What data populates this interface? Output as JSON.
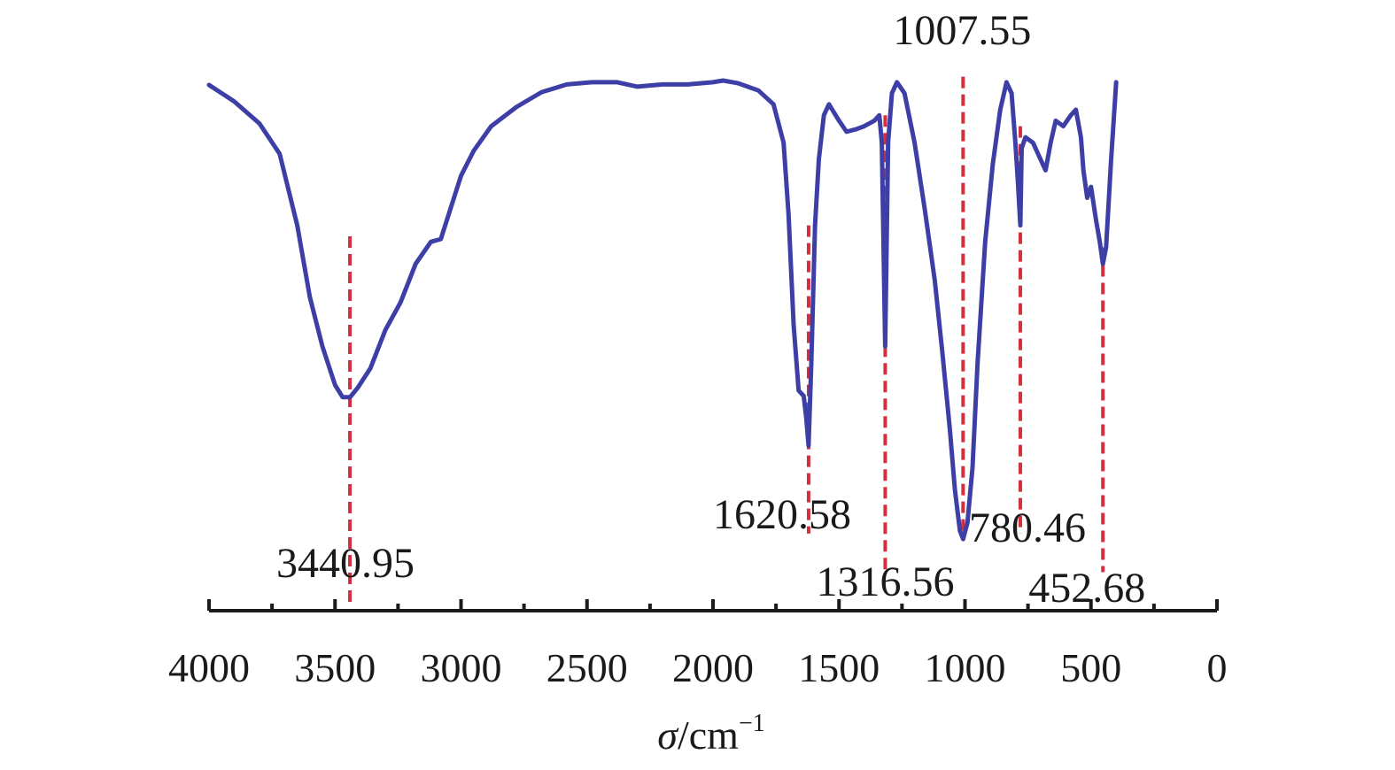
{
  "chart_data": {
    "type": "line",
    "title": "",
    "xlabel_symbol": "σ",
    "xlabel_unit": "/cm",
    "xlabel_exponent": "−1",
    "ylabel": "",
    "xlim": [
      4000,
      0
    ],
    "ylim": [
      0,
      100
    ],
    "x_reversed": true,
    "x_ticks": [
      4000,
      3500,
      3000,
      2500,
      2000,
      1500,
      1000,
      500,
      0
    ],
    "grid": false,
    "legend": "none",
    "colors": {
      "line": "#3d3fa6",
      "marker": "#d32f3f",
      "axis": "#1a1a1a"
    },
    "series": [
      {
        "points": [
          [
            4000,
            95.5
          ],
          [
            3900,
            92.5
          ],
          [
            3800,
            88.5
          ],
          [
            3720,
            83
          ],
          [
            3650,
            70
          ],
          [
            3600,
            57
          ],
          [
            3550,
            48
          ],
          [
            3500,
            41
          ],
          [
            3470,
            38.8
          ],
          [
            3440,
            38.8
          ],
          [
            3410,
            40.5
          ],
          [
            3360,
            44
          ],
          [
            3300,
            51
          ],
          [
            3240,
            56
          ],
          [
            3180,
            63
          ],
          [
            3120,
            67
          ],
          [
            3080,
            67.5
          ],
          [
            3000,
            79
          ],
          [
            2950,
            83.5
          ],
          [
            2880,
            88
          ],
          [
            2780,
            91.5
          ],
          [
            2680,
            94.2
          ],
          [
            2580,
            95.6
          ],
          [
            2480,
            96
          ],
          [
            2380,
            96
          ],
          [
            2300,
            95.2
          ],
          [
            2200,
            95.6
          ],
          [
            2100,
            95.6
          ],
          [
            2000,
            96
          ],
          [
            1960,
            96.3
          ],
          [
            1900,
            95.8
          ],
          [
            1820,
            94.5
          ],
          [
            1760,
            92
          ],
          [
            1720,
            85
          ],
          [
            1700,
            72
          ],
          [
            1680,
            52
          ],
          [
            1660,
            40
          ],
          [
            1640,
            39
          ],
          [
            1630,
            35
          ],
          [
            1620.58,
            30
          ],
          [
            1610,
            45
          ],
          [
            1595,
            70
          ],
          [
            1580,
            82
          ],
          [
            1560,
            90
          ],
          [
            1540,
            92
          ],
          [
            1500,
            89
          ],
          [
            1470,
            87
          ],
          [
            1430,
            87.5
          ],
          [
            1400,
            88
          ],
          [
            1360,
            89
          ],
          [
            1340,
            90
          ],
          [
            1330,
            85
          ],
          [
            1316.56,
            48
          ],
          [
            1305,
            85
          ],
          [
            1290,
            94
          ],
          [
            1270,
            96
          ],
          [
            1240,
            94
          ],
          [
            1200,
            85
          ],
          [
            1160,
            73
          ],
          [
            1120,
            60
          ],
          [
            1090,
            47
          ],
          [
            1060,
            33
          ],
          [
            1040,
            22
          ],
          [
            1020,
            14.5
          ],
          [
            1007.55,
            13
          ],
          [
            990,
            16
          ],
          [
            970,
            26
          ],
          [
            950,
            45
          ],
          [
            920,
            67
          ],
          [
            890,
            81
          ],
          [
            860,
            91
          ],
          [
            835,
            96
          ],
          [
            815,
            94
          ],
          [
            800,
            85
          ],
          [
            790,
            78
          ],
          [
            780.46,
            70
          ],
          [
            775,
            84
          ],
          [
            760,
            86
          ],
          [
            730,
            85
          ],
          [
            700,
            82
          ],
          [
            680,
            80
          ],
          [
            660,
            85
          ],
          [
            640,
            89
          ],
          [
            610,
            88
          ],
          [
            580,
            90
          ],
          [
            560,
            91
          ],
          [
            540,
            86
          ],
          [
            530,
            80
          ],
          [
            515,
            75
          ],
          [
            500,
            77
          ],
          [
            480,
            71
          ],
          [
            465,
            67
          ],
          [
            452.68,
            63
          ],
          [
            440,
            66
          ],
          [
            420,
            82
          ],
          [
            400,
            96
          ]
        ]
      }
    ],
    "peaks": [
      {
        "x": 3440.95,
        "label": "3440.95",
        "line_from": 68,
        "line_to": 1
      },
      {
        "x": 1620.58,
        "label": "1620.58",
        "line_from": 70,
        "line_to": 14
      },
      {
        "x": 1316.56,
        "label": "1316.56",
        "line_from": 90,
        "line_to": 7
      },
      {
        "x": 1007.55,
        "label": "1007.55",
        "line_from": 97,
        "line_to": 13
      },
      {
        "x": 780.46,
        "label": "780.46",
        "line_from": 88,
        "line_to": 14
      },
      {
        "x": 452.68,
        "label": "452.68",
        "line_from": 66,
        "line_to": 7
      }
    ]
  }
}
